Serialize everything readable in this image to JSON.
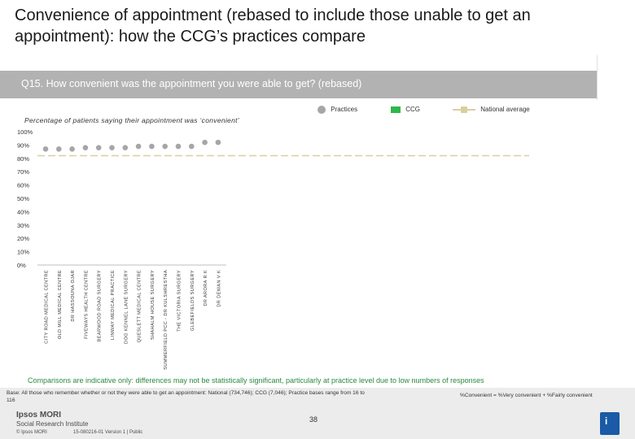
{
  "header": {
    "title": "Convenience of appointment (rebased to include those unable to get an appointment): how the CCG’s practices compare",
    "question": "Q15. How convenient was the appointment you were able to get? (rebased)"
  },
  "legend": {
    "practices": "Practices",
    "ccg": "CCG",
    "national": "National average"
  },
  "colors": {
    "practice": "#a6a6a6",
    "ccg": "#2eb84b",
    "national": "#d9cf9e",
    "question_bar": "#b2b2b2",
    "note_green": "#2b8a3e",
    "badge": "#1a5aa6"
  },
  "chart_data": {
    "type": "scatter",
    "subtitle": "Percentage of patients saying their appointment was ‘convenient’",
    "categories": [
      "CITY ROAD MEDICAL CENTRE",
      "OLD MILL MEDICAL CENTRE",
      "DR HASSOUNA OJAR",
      "FIVEWAYS HEALTH CENTRE",
      "BEARWOOD ROAD SURGERY",
      "LINWAY MEDICAL PRACTICE",
      "DOG KENNEL LANE SURGERY",
      "QUESLETT MEDICAL CENTRE",
      "SHAHALM HOUSE SURGERY",
      "SUMMERFIELD PCC - DR KULSHRESTHA",
      "THE VICTORIA SURGERY",
      "GLEBEFIELDS SURGERY",
      "DR ARORA R K",
      "DR DEWAN V K"
    ],
    "series": [
      {
        "name": "Practices",
        "values": [
          87,
          87,
          87,
          88,
          88,
          88,
          88,
          89,
          89,
          89,
          89,
          89,
          92,
          92
        ]
      }
    ],
    "national_average": 82,
    "y_ticks": [
      "0%",
      "10%",
      "20%",
      "30%",
      "40%",
      "50%",
      "60%",
      "70%",
      "80%",
      "90%",
      "100%"
    ],
    "ylim": [
      0,
      100
    ],
    "grid": false,
    "legend_position": "top-right"
  },
  "notes": {
    "comparisons": "Comparisons are indicative only: differences may not be statistically significant, particularly at practice level due to low numbers of responses",
    "base": "Base: All those who remember whether or not they were able to get an appointment: National (734,746); CCG (7,046); Practice bases range from 16 to 116",
    "formula": "%Convenient = %Very convenient + %Fairly convenient"
  },
  "footer": {
    "logo_main": "Ipsos MORI",
    "logo_sub": "Social Research Institute",
    "copyright": "© Ipsos MORI",
    "version": "15-080216-01 Version 1 | Public",
    "page_number": "38",
    "badge": "i"
  }
}
